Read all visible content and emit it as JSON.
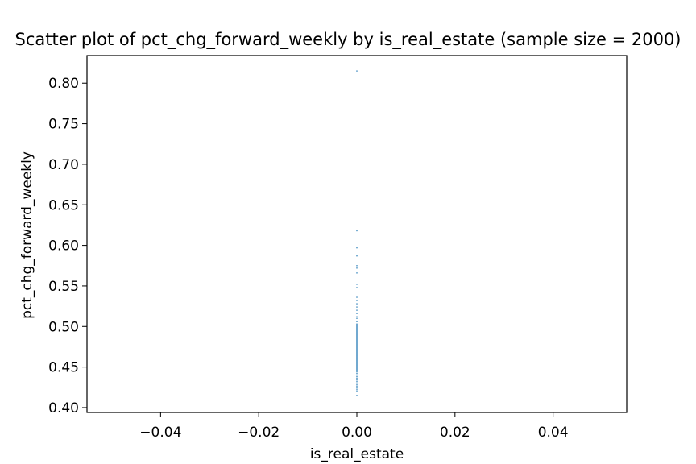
{
  "chart_data": {
    "type": "scatter",
    "title": "Scatter plot of pct_chg_forward_weekly by is_real_estate (sample size = 2000)",
    "xlabel": "is_real_estate",
    "ylabel": "pct_chg_forward_weekly",
    "xlim": [
      -0.055,
      0.055
    ],
    "ylim": [
      0.394,
      0.834
    ],
    "xticks": [
      -0.04,
      -0.02,
      0.0,
      0.02,
      0.04
    ],
    "xtick_labels": [
      "−0.04",
      "−0.02",
      "0.00",
      "0.02",
      "0.04"
    ],
    "yticks": [
      0.4,
      0.45,
      0.5,
      0.55,
      0.6,
      0.65,
      0.7,
      0.75,
      0.8
    ],
    "ytick_labels": [
      "0.40",
      "0.45",
      "0.50",
      "0.55",
      "0.60",
      "0.65",
      "0.70",
      "0.75",
      "0.80"
    ],
    "grid": false,
    "marker_color": "#1f77b4",
    "series": [
      {
        "x": [
          0,
          0,
          0,
          0,
          0,
          0,
          0,
          0,
          0,
          0,
          0,
          0,
          0,
          0,
          0,
          0,
          0,
          0,
          0,
          0,
          0,
          0,
          0,
          0,
          0,
          0,
          0,
          0,
          0,
          0,
          0,
          0,
          0,
          0,
          0,
          0,
          0,
          0,
          0,
          0,
          0,
          0,
          0,
          0,
          0,
          0,
          0,
          0,
          0,
          0,
          0,
          0,
          0,
          0,
          0,
          0,
          0,
          0,
          0,
          0,
          0,
          0,
          0,
          0,
          0,
          0,
          0,
          0,
          0,
          0,
          0,
          0,
          0,
          0,
          0,
          0,
          0,
          0,
          0,
          0,
          0,
          0,
          0,
          0,
          0,
          0,
          0,
          0,
          0,
          0
        ],
        "y": [
          0.815,
          0.618,
          0.597,
          0.587,
          0.575,
          0.572,
          0.566,
          0.552,
          0.548,
          0.536,
          0.532,
          0.528,
          0.524,
          0.52,
          0.516,
          0.512,
          0.51,
          0.506,
          0.503,
          0.502,
          0.5,
          0.498,
          0.496,
          0.494,
          0.492,
          0.49,
          0.488,
          0.486,
          0.484,
          0.482,
          0.48,
          0.478,
          0.476,
          0.474,
          0.472,
          0.47,
          0.468,
          0.466,
          0.464,
          0.462,
          0.46,
          0.458,
          0.456,
          0.454,
          0.452,
          0.45,
          0.448,
          0.446,
          0.444,
          0.442,
          0.44,
          0.438,
          0.436,
          0.434,
          0.432,
          0.43,
          0.428,
          0.426,
          0.424,
          0.422,
          0.42,
          0.415,
          0.501,
          0.499,
          0.497,
          0.495,
          0.493,
          0.491,
          0.489,
          0.487,
          0.485,
          0.483,
          0.481,
          0.479,
          0.477,
          0.475,
          0.473,
          0.471,
          0.469,
          0.467,
          0.465,
          0.463,
          0.461,
          0.459,
          0.457,
          0.455,
          0.453,
          0.451,
          0.449,
          0.447
        ]
      }
    ]
  }
}
